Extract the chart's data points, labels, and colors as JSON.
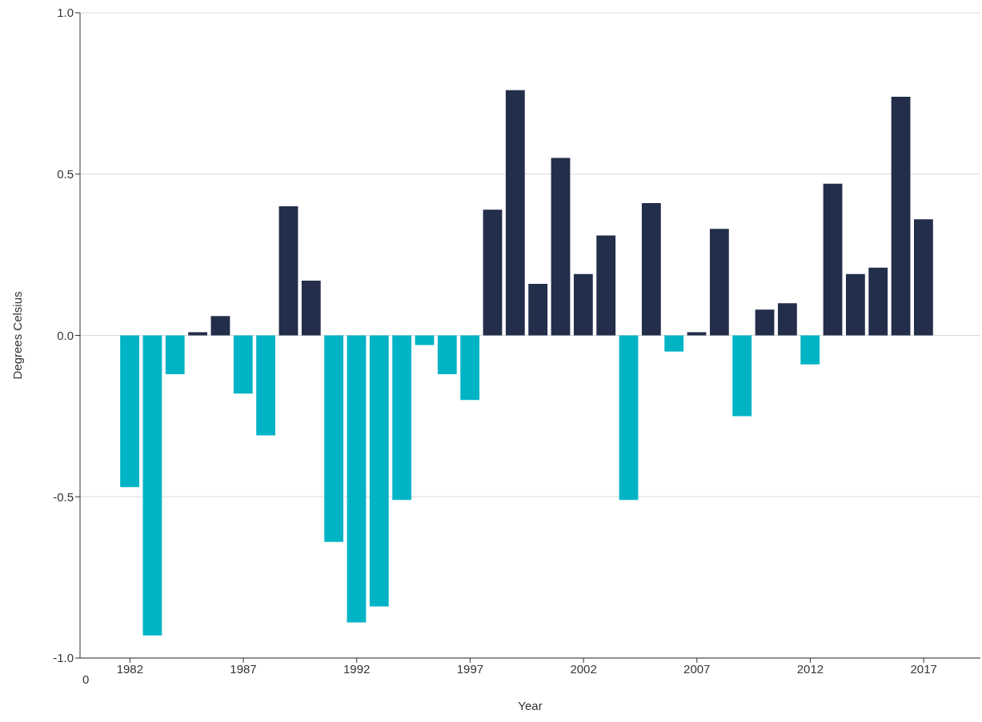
{
  "chart_data": {
    "type": "bar",
    "xlabel": "Year",
    "ylabel": "Degrees Celsius",
    "x": [
      1982,
      1983,
      1984,
      1985,
      1986,
      1987,
      1988,
      1989,
      1990,
      1991,
      1992,
      1993,
      1994,
      1995,
      1996,
      1997,
      1998,
      1999,
      2000,
      2001,
      2002,
      2003,
      2004,
      2005,
      2006,
      2007,
      2008,
      2009,
      2010,
      2011,
      2012,
      2013,
      2014,
      2015,
      2016,
      2017
    ],
    "values": [
      -0.47,
      -0.93,
      -0.12,
      0.01,
      0.06,
      -0.18,
      -0.31,
      0.4,
      0.17,
      -0.64,
      -0.89,
      -0.84,
      -0.51,
      -0.03,
      -0.12,
      -0.2,
      0.39,
      0.76,
      0.16,
      0.55,
      0.19,
      0.31,
      -0.51,
      0.41,
      -0.05,
      0.01,
      0.33,
      -0.25,
      0.08,
      0.1,
      -0.09,
      0.47,
      0.19,
      0.21,
      0.74,
      0.36
    ],
    "colors": [
      "#00b4c5",
      "#00b4c5",
      "#00b4c5",
      "#222e4a",
      "#222e4a",
      "#00b4c5",
      "#00b4c5",
      "#222e4a",
      "#222e4a",
      "#00b4c5",
      "#00b4c5",
      "#00b4c5",
      "#00b4c5",
      "#00b4c5",
      "#00b4c5",
      "#00b4c5",
      "#222e4a",
      "#222e4a",
      "#222e4a",
      "#222e4a",
      "#222e4a",
      "#222e4a",
      "#00b4c5",
      "#222e4a",
      "#00b4c5",
      "#222e4a",
      "#222e4a",
      "#00b4c5",
      "#222e4a",
      "#222e4a",
      "#00b4c5",
      "#222e4a",
      "#222e4a",
      "#222e4a",
      "#222e4a",
      "#222e4a"
    ],
    "xlim": [
      1979.8,
      2019.5
    ],
    "annotations": [
      "0"
    ],
    "xticks": [
      1982,
      1987,
      1992,
      1997,
      2002,
      2007,
      2012,
      2017
    ],
    "ylim": [
      -1,
      1
    ],
    "yticks": [
      {
        "value": -1,
        "label": "-1.0"
      },
      {
        "value": -0.5,
        "label": "-0.5"
      },
      {
        "value": 0,
        "label": "0.0"
      },
      {
        "value": 0.5,
        "label": "0.5"
      },
      {
        "value": 1,
        "label": "1.0"
      }
    ],
    "grid": "y"
  }
}
